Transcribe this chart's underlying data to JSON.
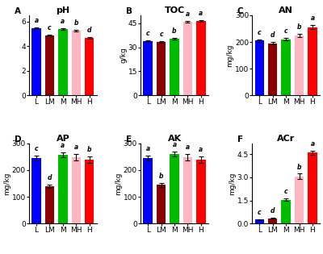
{
  "panels": [
    {
      "label": "A",
      "title": "pH",
      "ylabel": "",
      "ylim": [
        0,
        6.5
      ],
      "yticks": [
        0,
        2,
        4,
        6
      ],
      "values": [
        5.45,
        4.85,
        5.4,
        5.25,
        4.65
      ],
      "errors": [
        0.08,
        0.06,
        0.07,
        0.08,
        0.06
      ],
      "sig_labels": [
        "a",
        "c",
        "a",
        "b",
        "d"
      ]
    },
    {
      "label": "B",
      "title": "TOC",
      "ylabel": "g/kg",
      "ylim": [
        0,
        50
      ],
      "yticks": [
        0,
        15,
        30,
        45
      ],
      "values": [
        34.0,
        33.5,
        35.5,
        46.0,
        46.5
      ],
      "errors": [
        0.5,
        0.5,
        0.5,
        0.6,
        0.6
      ],
      "sig_labels": [
        "c",
        "c",
        "b",
        "a",
        "a"
      ]
    },
    {
      "label": "C",
      "title": "AN",
      "ylabel": "mg/kg",
      "ylim": [
        0,
        300
      ],
      "yticks": [
        0,
        100,
        200,
        300
      ],
      "values": [
        205,
        195,
        210,
        225,
        255
      ],
      "errors": [
        5,
        5,
        5,
        6,
        8
      ],
      "sig_labels": [
        "c",
        "d",
        "c",
        "b",
        "a"
      ]
    },
    {
      "label": "D",
      "title": "AP",
      "ylabel": "mg/kg",
      "ylim": [
        0,
        300
      ],
      "yticks": [
        0,
        100,
        200,
        300
      ],
      "values": [
        245,
        140,
        258,
        248,
        240
      ],
      "errors": [
        8,
        7,
        9,
        12,
        12
      ],
      "sig_labels": [
        "c",
        "d",
        "a",
        "a",
        "b"
      ]
    },
    {
      "label": "E",
      "title": "AK",
      "ylabel": "mg/kg",
      "ylim": [
        0,
        300
      ],
      "yticks": [
        0,
        100,
        200,
        300
      ],
      "values": [
        245,
        145,
        260,
        248,
        238
      ],
      "errors": [
        8,
        7,
        10,
        12,
        12
      ],
      "sig_labels": [
        "a",
        "b",
        "a",
        "a",
        "a"
      ]
    },
    {
      "label": "F",
      "title": "ACr",
      "ylabel": "mg/kg",
      "ylim": [
        0,
        5.2
      ],
      "yticks": [
        0.0,
        1.5,
        3.0,
        4.5
      ],
      "values": [
        0.25,
        0.35,
        1.55,
        3.05,
        4.6
      ],
      "errors": [
        0.04,
        0.05,
        0.08,
        0.18,
        0.12
      ],
      "sig_labels": [
        "c",
        "d",
        "c",
        "b",
        "a"
      ]
    }
  ],
  "categories": [
    "L",
    "LM",
    "M",
    "MH",
    "H"
  ],
  "bar_colors": [
    "#0000FF",
    "#8B0000",
    "#00BB00",
    "#FFB6C1",
    "#FF0000"
  ],
  "sig_fontsize": 5.5,
  "title_fontsize": 8,
  "ylabel_fontsize": 6.5,
  "tick_fontsize": 6.5,
  "cat_fontsize": 6.5,
  "panel_label_fontsize": 7.5
}
